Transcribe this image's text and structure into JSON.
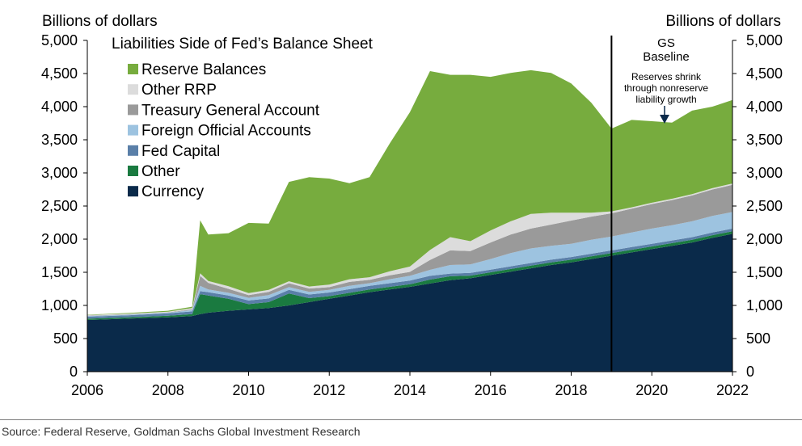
{
  "chart_data": {
    "type": "area",
    "title": "Liabilities Side of Fed’s Balance Sheet",
    "ylabel_left": "Billions of dollars",
    "ylabel_right": "Billions of dollars",
    "ylim": [
      0,
      5000
    ],
    "xlim": [
      2006,
      2022
    ],
    "x_ticks": [
      "2006",
      "2008",
      "2010",
      "2012",
      "2014",
      "2016",
      "2018",
      "2020",
      "2022"
    ],
    "y_ticks": [
      "0",
      "500",
      "1,000",
      "1,500",
      "2,000",
      "2,500",
      "3,000",
      "3,500",
      "4,000",
      "4,500",
      "5,000"
    ],
    "vertical_marker": 2019,
    "marker_label": "GS Baseline",
    "annotation": "Reserves shrink through nonreserve liability growth",
    "annotation_x": 2020.3,
    "x": [
      2006,
      2007,
      2008,
      2008.6,
      2008.8,
      2009,
      2009.5,
      2010,
      2010.5,
      2011,
      2011.5,
      2012,
      2012.5,
      2013,
      2013.5,
      2014,
      2014.5,
      2015,
      2015.5,
      2016,
      2016.5,
      2017,
      2017.5,
      2018,
      2018.5,
      2019,
      2019.5,
      2020,
      2020.5,
      2021,
      2021.5,
      2022
    ],
    "series": [
      {
        "name": "Currency",
        "color": "#0a2a4a",
        "values": [
          780,
          800,
          820,
          840,
          870,
          890,
          920,
          940,
          960,
          1000,
          1050,
          1100,
          1150,
          1200,
          1240,
          1280,
          1330,
          1380,
          1410,
          1460,
          1510,
          1560,
          1610,
          1650,
          1700,
          1750,
          1800,
          1850,
          1900,
          1950,
          2020,
          2080
        ]
      },
      {
        "name": "Other",
        "color": "#1a7a40",
        "values": [
          20,
          20,
          25,
          30,
          300,
          260,
          180,
          80,
          90,
          180,
          60,
          40,
          40,
          40,
          40,
          40,
          60,
          60,
          40,
          40,
          40,
          40,
          40,
          40,
          40,
          40,
          40,
          40,
          40,
          40,
          40,
          40
        ]
      },
      {
        "name": "Fed Capital",
        "color": "#5a7fa8",
        "values": [
          30,
          30,
          35,
          40,
          45,
          50,
          50,
          55,
          55,
          55,
          55,
          55,
          55,
          55,
          55,
          56,
          56,
          40,
          40,
          40,
          40,
          40,
          40,
          40,
          40,
          40,
          40,
          40,
          40,
          40,
          40,
          40
        ]
      },
      {
        "name": "Foreign Official Accounts",
        "color": "#9dc3e0",
        "values": [
          10,
          10,
          10,
          20,
          80,
          40,
          40,
          40,
          50,
          40,
          40,
          40,
          50,
          40,
          60,
          70,
          90,
          130,
          130,
          160,
          200,
          220,
          210,
          200,
          210,
          210,
          220,
          230,
          230,
          240,
          250,
          250
        ]
      },
      {
        "name": "Treasury General Account",
        "color": "#9a9a9a",
        "values": [
          5,
          5,
          5,
          10,
          150,
          100,
          60,
          40,
          50,
          60,
          50,
          40,
          60,
          50,
          60,
          60,
          150,
          220,
          200,
          250,
          280,
          300,
          320,
          350,
          350,
          350,
          360,
          370,
          380,
          390,
          400,
          410
        ]
      },
      {
        "name": "Other RRP",
        "color": "#dcdcdc",
        "values": [
          10,
          10,
          10,
          20,
          40,
          30,
          40,
          30,
          30,
          30,
          30,
          40,
          40,
          40,
          60,
          80,
          150,
          200,
          150,
          180,
          200,
          220,
          180,
          120,
          60,
          30,
          20,
          20,
          20,
          20,
          20,
          20
        ]
      },
      {
        "name": "Reserve Balances",
        "color": "#77ac3e",
        "values": [
          5,
          10,
          15,
          20,
          800,
          700,
          800,
          1060,
          1000,
          1500,
          1650,
          1600,
          1450,
          1510,
          1930,
          2330,
          2700,
          2450,
          2510,
          2320,
          2240,
          2170,
          2110,
          1950,
          1660,
          1250,
          1320,
          1230,
          1150,
          1260,
          1230,
          1260
        ]
      }
    ]
  },
  "legend": {
    "items": [
      {
        "label": "Reserve Balances",
        "color": "#77ac3e"
      },
      {
        "label": "Other RRP",
        "color": "#dcdcdc"
      },
      {
        "label": "Treasury General Account",
        "color": "#9a9a9a"
      },
      {
        "label": "Foreign Official Accounts",
        "color": "#9dc3e0"
      },
      {
        "label": "Fed Capital",
        "color": "#5a7fa8"
      },
      {
        "label": "Other",
        "color": "#1a7a40"
      },
      {
        "label": "Currency",
        "color": "#0a2a4a"
      }
    ]
  },
  "annotations": {
    "gs": "GS",
    "baseline": "Baseline",
    "reserves_line1": "Reserves shrink",
    "reserves_line2": "through nonreserve",
    "reserves_line3": "liability growth"
  },
  "footer": {
    "source": "Source: Federal Reserve, Goldman Sachs Global Investment Research"
  }
}
